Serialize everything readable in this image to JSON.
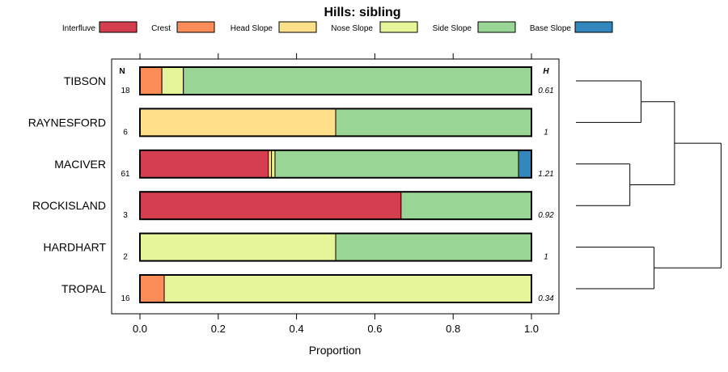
{
  "chart_data": {
    "type": "bar",
    "orientation": "horizontal-stacked",
    "title": "Hills: sibling",
    "xlabel": "Proportion",
    "ylabel": "",
    "xlim": [
      0,
      1
    ],
    "x_ticks": [
      "0.0",
      "0.2",
      "0.4",
      "0.6",
      "0.8",
      "1.0"
    ],
    "x_tick_values": [
      0,
      0.2,
      0.4,
      0.6,
      0.8,
      1.0
    ],
    "legend_position": "top",
    "n_header": "N",
    "h_header": "H",
    "series": [
      {
        "name": "Interfluve",
        "color": "#d53e4f"
      },
      {
        "name": "Crest",
        "color": "#fc8d59"
      },
      {
        "name": "Head Slope",
        "color": "#fee08b"
      },
      {
        "name": "Nose Slope",
        "color": "#e6f598"
      },
      {
        "name": "Side Slope",
        "color": "#99d594"
      },
      {
        "name": "Base Slope",
        "color": "#3288bd"
      }
    ],
    "categories": [
      "TIBSON",
      "RAYNESFORD",
      "MACIVER",
      "ROCKISLAND",
      "HARDHART",
      "TROPAL"
    ],
    "rows": [
      {
        "label": "TIBSON",
        "n": "18",
        "h": "0.61",
        "values": [
          0,
          0.056,
          0,
          0.055,
          0.889,
          0
        ]
      },
      {
        "label": "RAYNESFORD",
        "n": "6",
        "h": "1",
        "values": [
          0,
          0,
          0.5,
          0,
          0.5,
          0
        ]
      },
      {
        "label": "MACIVER",
        "n": "61",
        "h": "1.21",
        "values": [
          0.328,
          0,
          0.008,
          0.009,
          0.622,
          0.033
        ]
      },
      {
        "label": "ROCKISLAND",
        "n": "3",
        "h": "0.92",
        "values": [
          0.667,
          0,
          0,
          0,
          0.333,
          0
        ]
      },
      {
        "label": "HARDHART",
        "n": "2",
        "h": "1",
        "values": [
          0,
          0,
          0,
          0.5,
          0.5,
          0
        ]
      },
      {
        "label": "TROPAL",
        "n": "16",
        "h": "0.34",
        "values": [
          0,
          0.062,
          0,
          0.938,
          0,
          0
        ]
      }
    ],
    "dendrogram": {
      "merges": [
        [
          "TIBSON",
          "RAYNESFORD"
        ],
        [
          "MACIVER",
          "ROCKISLAND"
        ],
        [
          "HARDHART",
          "TROPAL"
        ],
        [
          "TIBSON+RAYNESFORD",
          "MACIVER+ROCKISLAND"
        ],
        [
          "ALL-TOP",
          "HARDHART+TROPAL"
        ]
      ],
      "heights": [
        0.35,
        0.29,
        0.42,
        0.53,
        0.78
      ]
    }
  }
}
